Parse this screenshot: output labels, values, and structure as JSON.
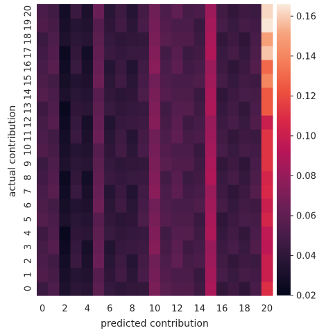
{
  "chart_data": {
    "type": "heatmap",
    "xlabel": "predicted contribution",
    "ylabel": "actual contribution",
    "x_categories": [
      "0",
      "1",
      "2",
      "3",
      "4",
      "5",
      "6",
      "7",
      "8",
      "9",
      "10",
      "11",
      "12",
      "13",
      "14",
      "15",
      "16",
      "17",
      "18",
      "19",
      "20"
    ],
    "y_categories": [
      "0",
      "1",
      "2",
      "3",
      "4",
      "5",
      "6",
      "7",
      "8",
      "9",
      "10",
      "11",
      "12",
      "13",
      "14",
      "15",
      "16",
      "17",
      "18",
      "19",
      "20"
    ],
    "x_tick_labels": [
      "0",
      "2",
      "4",
      "6",
      "8",
      "10",
      "12",
      "14",
      "16",
      "18",
      "20"
    ],
    "y_tick_labels": [
      "0",
      "1",
      "2",
      "3",
      "4",
      "5",
      "6",
      "7",
      "8",
      "9",
      "10",
      "11",
      "12",
      "13",
      "14",
      "15",
      "16",
      "17",
      "18",
      "19",
      "20"
    ],
    "colormap": "rocket",
    "vmin": 0.02,
    "vmax": 0.166,
    "colorbar_ticks": [
      "0.16",
      "0.14",
      "0.12",
      "0.10",
      "0.08",
      "0.06",
      "0.04",
      "0.02"
    ],
    "column_base_values": [
      0.05,
      0.052,
      0.028,
      0.04,
      0.033,
      0.06,
      0.04,
      0.043,
      0.04,
      0.047,
      0.07,
      0.052,
      0.055,
      0.05,
      0.048,
      0.085,
      0.045,
      0.045,
      0.045,
      0.05,
      0.11
    ],
    "column_20_values_by_row": [
      0.11,
      0.1,
      0.1,
      0.095,
      0.096,
      0.105,
      0.1,
      0.107,
      0.105,
      0.112,
      0.112,
      0.112,
      0.1,
      0.125,
      0.125,
      0.14,
      0.13,
      0.158,
      0.15,
      0.165,
      0.162
    ]
  }
}
